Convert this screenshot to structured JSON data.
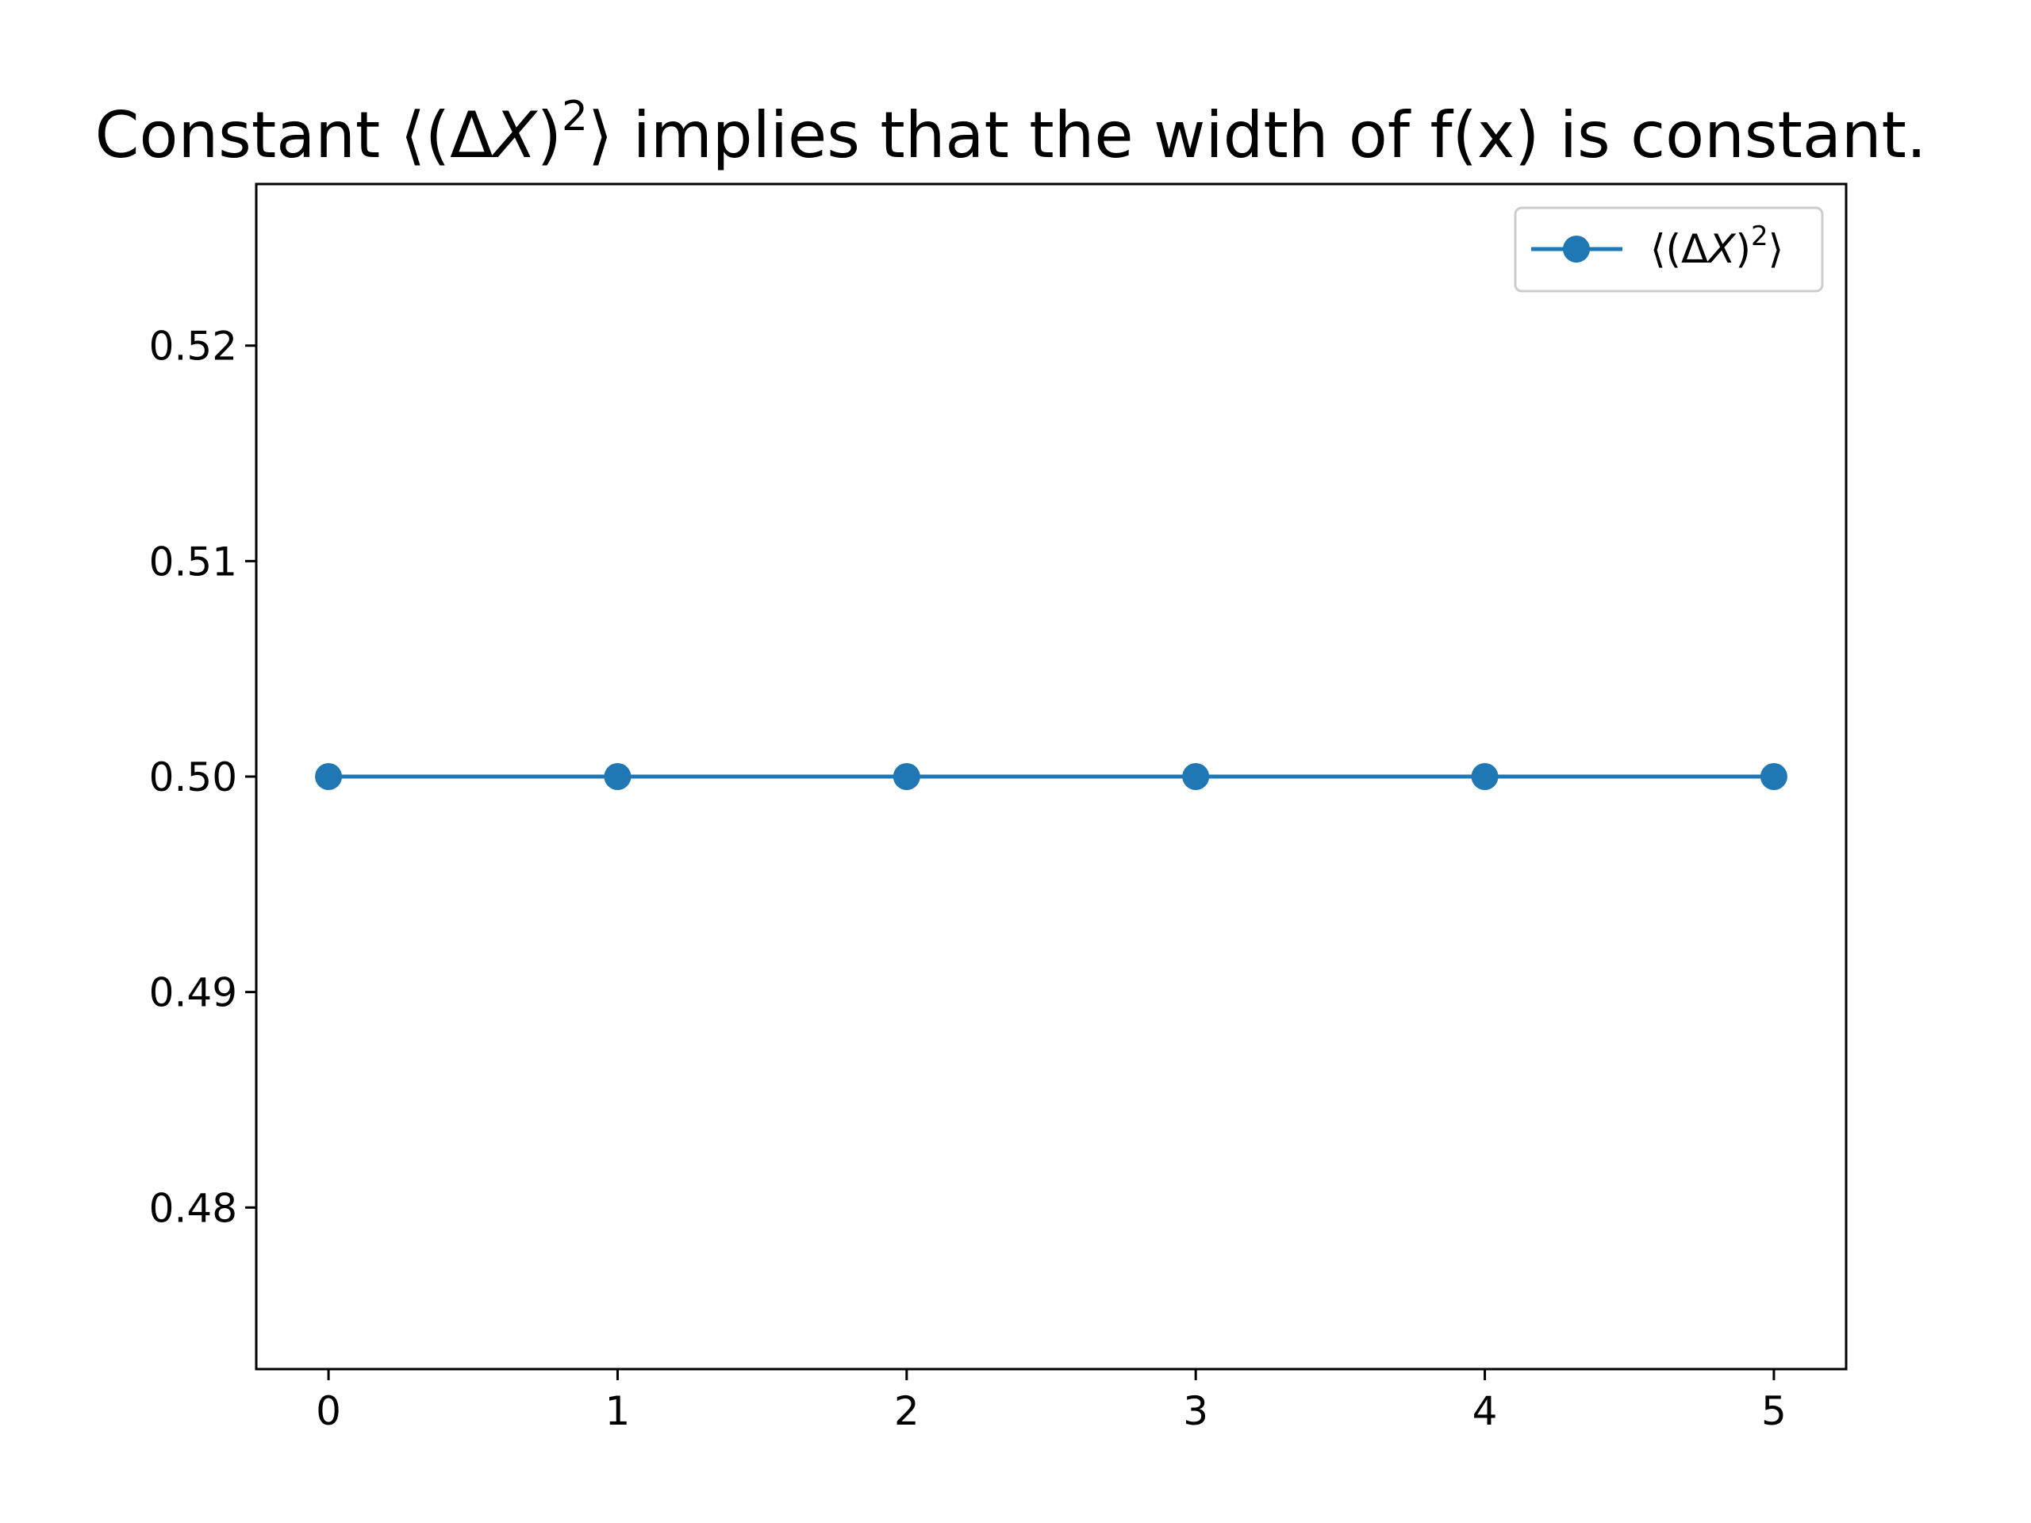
{
  "chart_data": {
    "type": "line",
    "title": {
      "prefix": "Constant ⟨(Δ",
      "var": "X",
      "close": ")",
      "exponent": "2",
      "suffix": "⟩ implies that the width of f(x) is constant."
    },
    "xlabel": "",
    "ylabel": "",
    "x": [
      0,
      1,
      2,
      3,
      4,
      5
    ],
    "series": [
      {
        "name": {
          "prefix": "⟨(Δ",
          "var": "X",
          "close": ")",
          "exponent": "2",
          "suffix": "⟩"
        },
        "values": [
          0.5,
          0.5,
          0.5,
          0.5,
          0.5,
          0.5
        ],
        "color": "#1f77b4",
        "marker": "circle"
      }
    ],
    "xlim": [
      -0.25,
      5.25
    ],
    "ylim": [
      0.4725,
      0.5275
    ],
    "xticks": [
      {
        "value": 0,
        "label": "0"
      },
      {
        "value": 1,
        "label": "1"
      },
      {
        "value": 2,
        "label": "2"
      },
      {
        "value": 3,
        "label": "3"
      },
      {
        "value": 4,
        "label": "4"
      },
      {
        "value": 5,
        "label": "5"
      }
    ],
    "yticks": [
      {
        "value": 0.48,
        "label": "0.48"
      },
      {
        "value": 0.49,
        "label": "0.49"
      },
      {
        "value": 0.5,
        "label": "0.50"
      },
      {
        "value": 0.51,
        "label": "0.51"
      },
      {
        "value": 0.52,
        "label": "0.52"
      }
    ],
    "grid": false,
    "legend_position": "upper right"
  }
}
